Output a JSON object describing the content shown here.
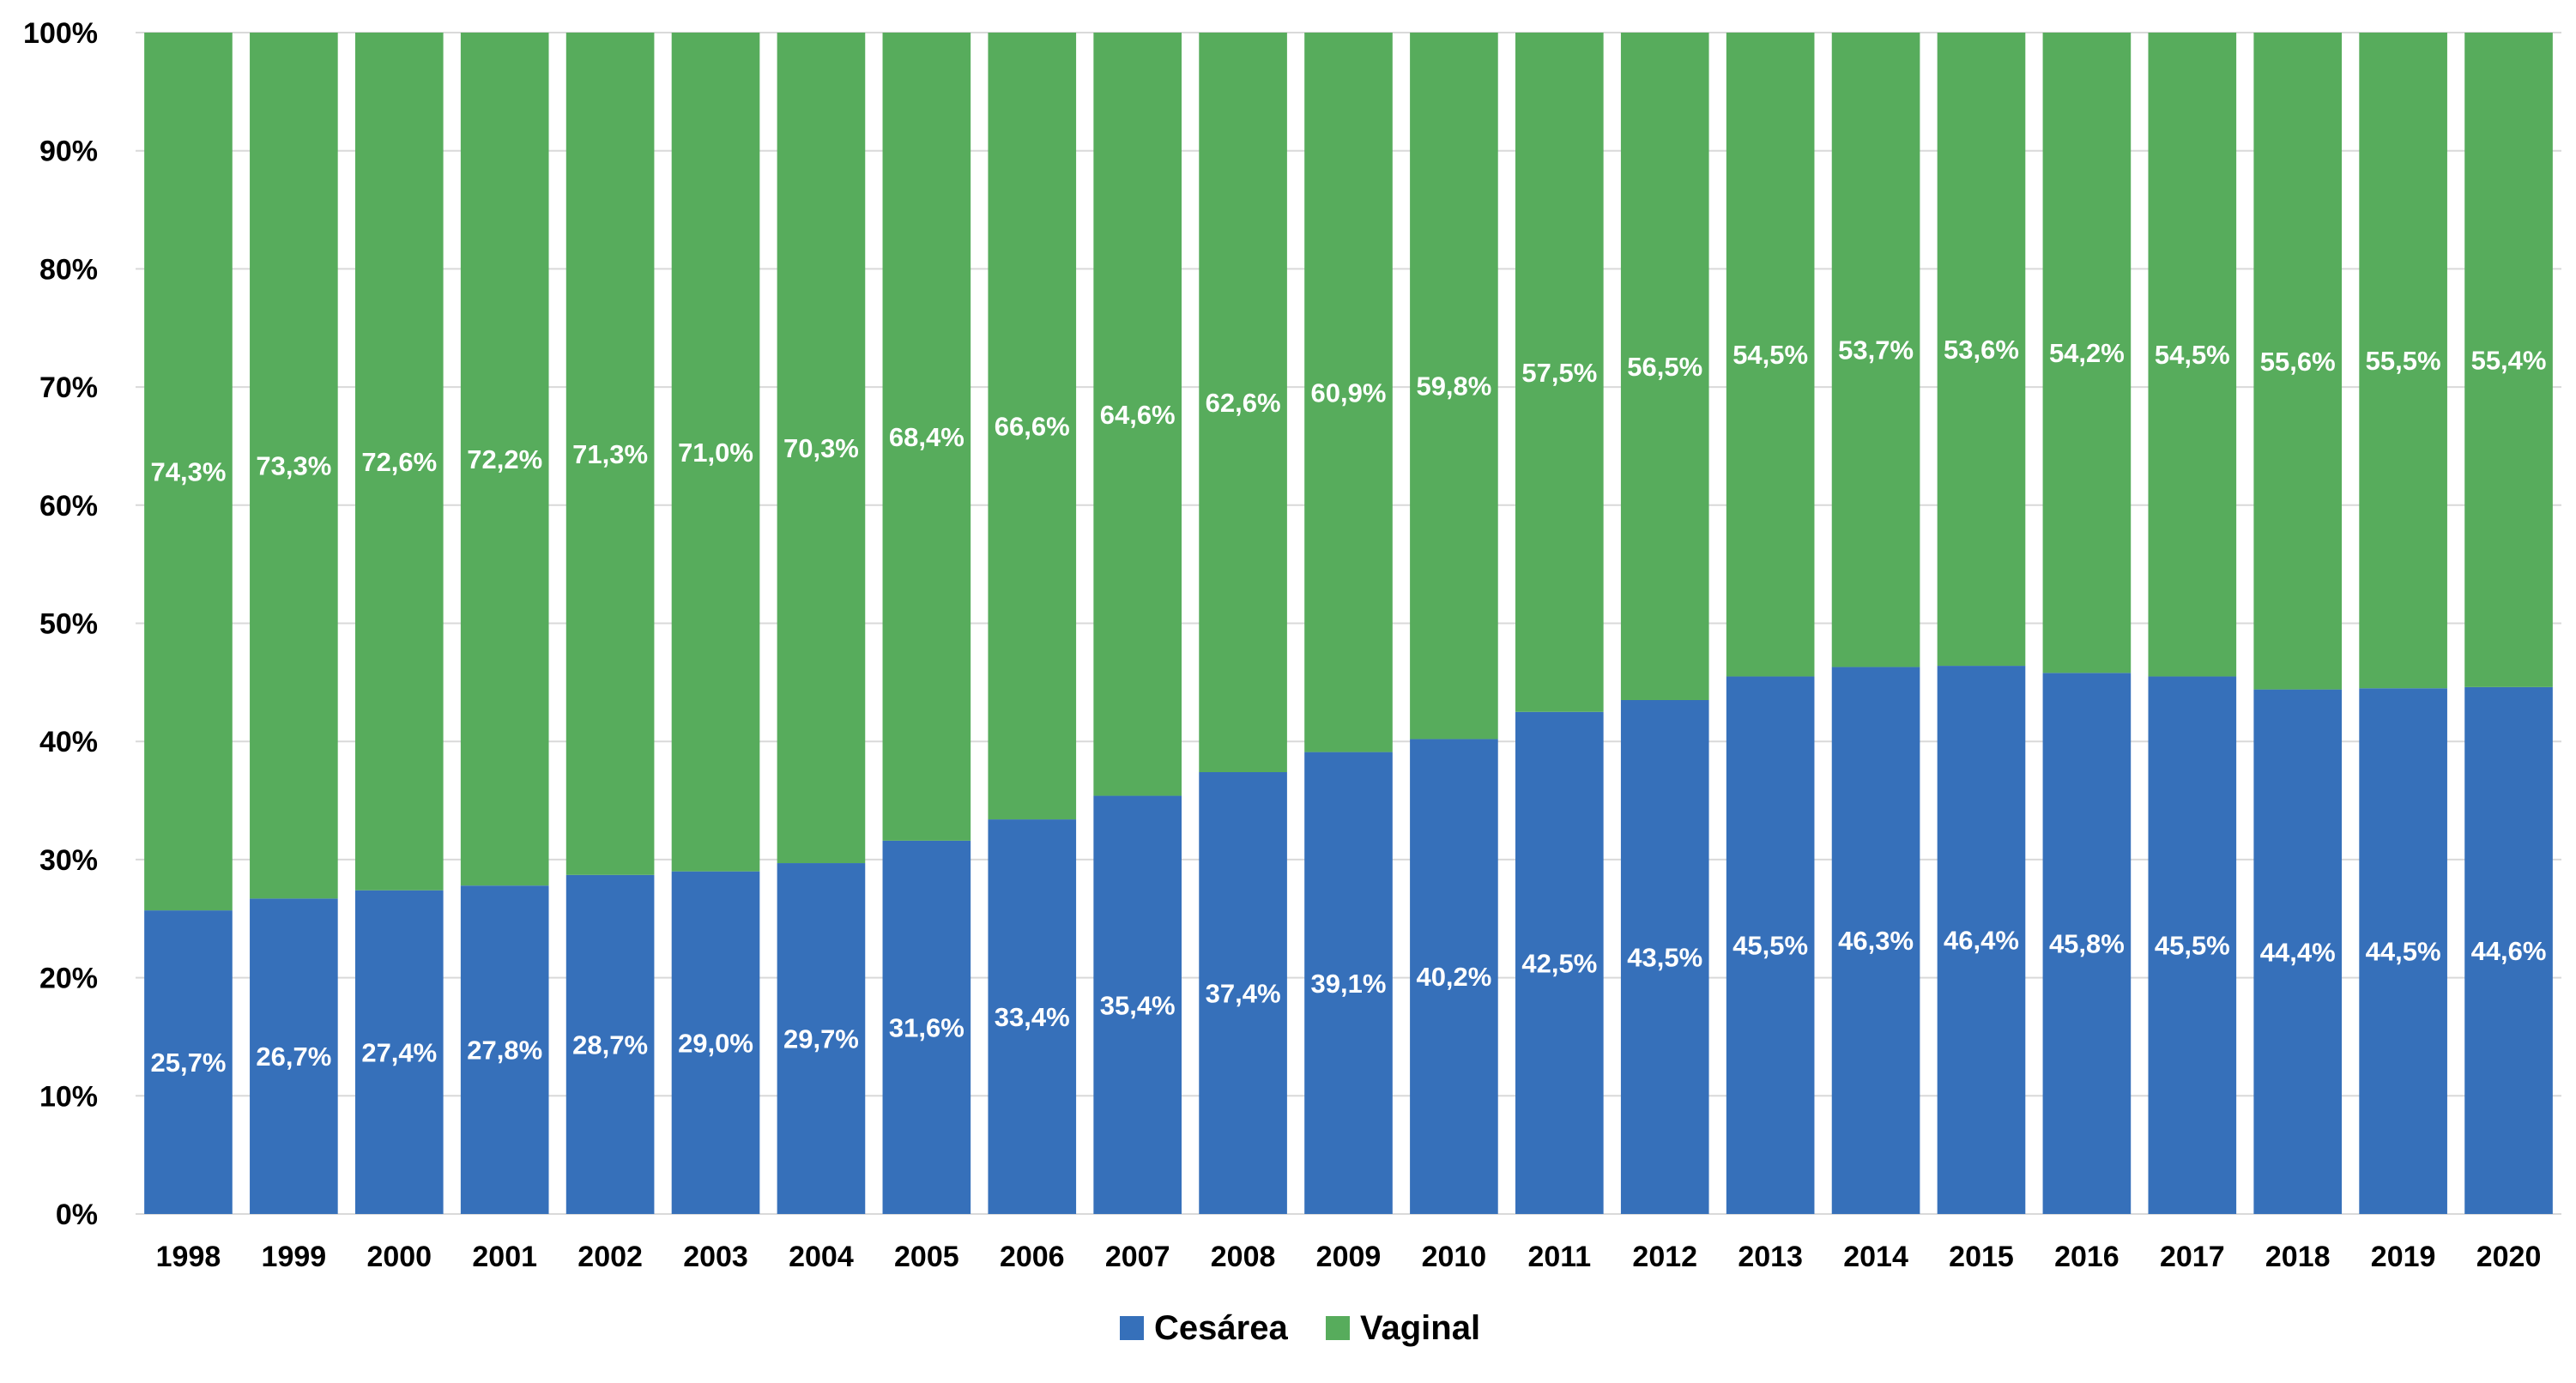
{
  "chart_data": {
    "type": "bar",
    "stacked": true,
    "percent_stacked": true,
    "categories": [
      "1998",
      "1999",
      "2000",
      "2001",
      "2002",
      "2003",
      "2004",
      "2005",
      "2006",
      "2007",
      "2008",
      "2009",
      "2010",
      "2011",
      "2012",
      "2013",
      "2014",
      "2015",
      "2016",
      "2017",
      "2018",
      "2019",
      "2020"
    ],
    "series": [
      {
        "name": "Cesárea",
        "color": "#3670BA",
        "values": [
          25.7,
          26.7,
          27.4,
          27.8,
          28.7,
          29.0,
          29.7,
          31.6,
          33.4,
          35.4,
          37.4,
          39.1,
          40.2,
          42.5,
          43.5,
          45.5,
          46.3,
          46.4,
          45.8,
          45.5,
          44.4,
          44.5,
          44.6
        ],
        "labels": [
          "25,7%",
          "26,7%",
          "27,4%",
          "27,8%",
          "28,7%",
          "29,0%",
          "29,7%",
          "31,6%",
          "33,4%",
          "35,4%",
          "37,4%",
          "39,1%",
          "40,2%",
          "42,5%",
          "43,5%",
          "45,5%",
          "46,3%",
          "46,4%",
          "45,8%",
          "45,5%",
          "44,4%",
          "44,5%",
          "44,6%"
        ]
      },
      {
        "name": "Vaginal",
        "color": "#57AC5C",
        "values": [
          74.3,
          73.3,
          72.6,
          72.2,
          71.3,
          71.0,
          70.3,
          68.4,
          66.6,
          64.6,
          62.6,
          60.9,
          59.8,
          57.5,
          56.5,
          54.5,
          53.7,
          53.6,
          54.2,
          54.5,
          55.6,
          55.5,
          55.4
        ],
        "labels": [
          "74,3%",
          "73,3%",
          "72,6%",
          "72,2%",
          "71,3%",
          "71,0%",
          "70,3%",
          "68,4%",
          "66,6%",
          "64,6%",
          "62,6%",
          "60,9%",
          "59,8%",
          "57,5%",
          "56,5%",
          "54,5%",
          "53,7%",
          "53,6%",
          "54,2%",
          "54,5%",
          "55,6%",
          "55,5%",
          "55,4%"
        ]
      }
    ],
    "yticks": [
      "0%",
      "10%",
      "20%",
      "30%",
      "40%",
      "50%",
      "60%",
      "70%",
      "80%",
      "90%",
      "100%"
    ],
    "ylim": [
      0,
      100
    ],
    "title": "",
    "xlabel": "",
    "ylabel": "",
    "grid": true,
    "grid_color": "#d9d9d9",
    "legend_position": "bottom-center"
  }
}
